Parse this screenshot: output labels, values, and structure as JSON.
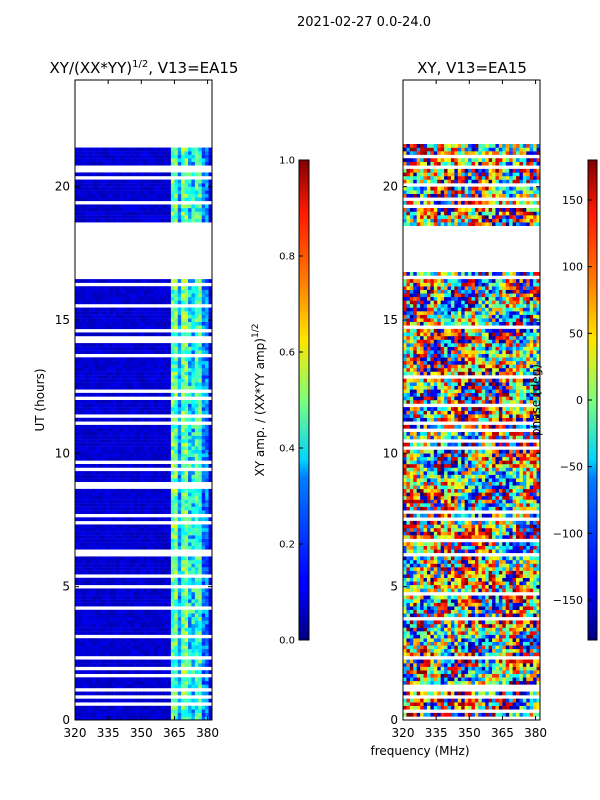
{
  "figure": {
    "suptitle": "2021-02-27 0.0-24.0",
    "xlabel_shared": "frequency (MHz)"
  },
  "chart_data": [
    {
      "type": "heatmap",
      "title": "XY/(XX*YY)^1/2, V13=EA15",
      "title_main": "XY/(XX*YY)",
      "title_sup": "1/2",
      "title_tail": ", V13=EA15",
      "xlabel": "",
      "ylabel": "UT (hours)",
      "xlim": [
        320,
        382
      ],
      "ylim": [
        0,
        24
      ],
      "xticks": [
        320,
        335,
        350,
        365,
        380
      ],
      "yticks": [
        0,
        5,
        10,
        15,
        20
      ],
      "data_gaps_hours": [
        [
          21.6,
          24.0
        ],
        [
          16.7,
          18.5
        ]
      ],
      "colorbar": {
        "label": "XY amp. / (XX*YY amp)^1/2",
        "label_main": "XY amp. / (XX*YY amp)",
        "label_sup": "1/2",
        "range": [
          0.0,
          1.0
        ],
        "ticks": [
          "0.0",
          "0.2",
          "0.4",
          "0.6",
          "0.8",
          "1.0"
        ],
        "colormap": "jet"
      }
    },
    {
      "type": "heatmap",
      "title": "XY, V13=EA15",
      "xlabel": "frequency (MHz)",
      "ylabel": "",
      "xlim": [
        320,
        382
      ],
      "ylim": [
        0,
        24
      ],
      "xticks": [
        320,
        335,
        350,
        365,
        380
      ],
      "yticks": [
        0,
        5,
        10,
        15,
        20
      ],
      "data_gaps_hours": [
        [
          21.6,
          24.0
        ],
        [
          16.7,
          18.5
        ]
      ],
      "colorbar": {
        "label": "phase (deg)",
        "range": [
          -180,
          180
        ],
        "ticks": [
          "−150",
          "−100",
          "−50",
          "0",
          "50",
          "100",
          "150"
        ],
        "tick_values": [
          -150,
          -100,
          -50,
          0,
          50,
          100,
          150
        ],
        "colormap": "jet"
      }
    }
  ]
}
